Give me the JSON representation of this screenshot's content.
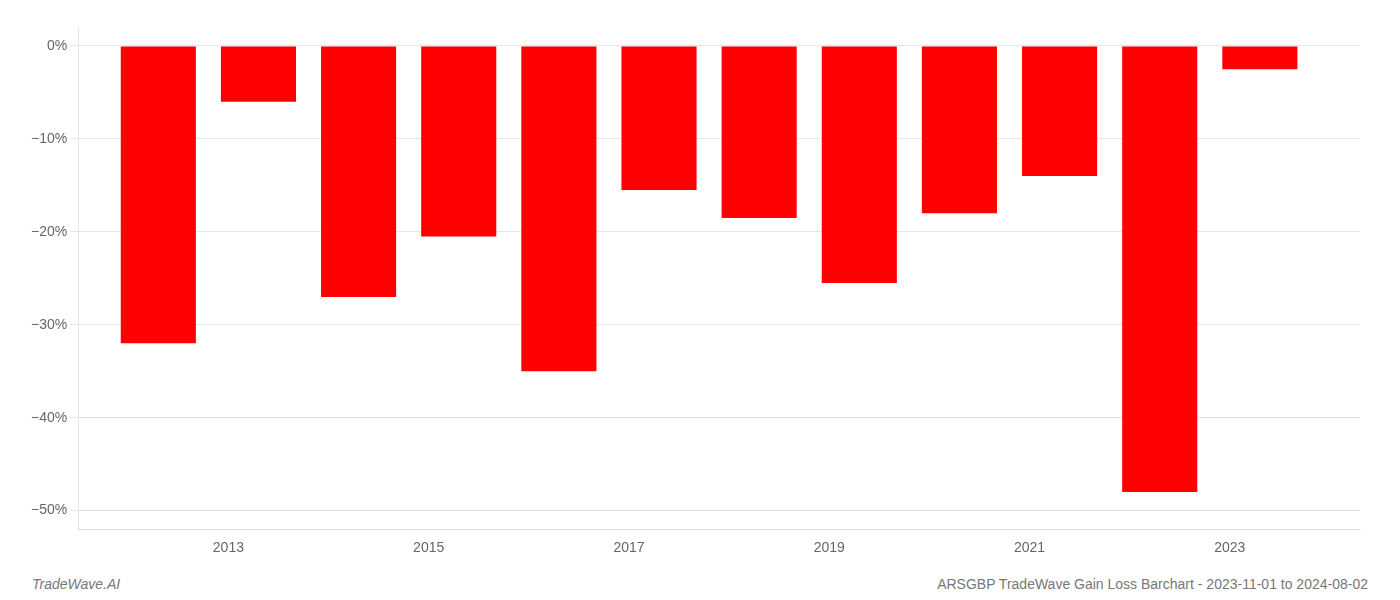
{
  "chart_data": {
    "type": "bar",
    "x": [
      2012.3,
      2013.3,
      2014.3,
      2015.3,
      2016.3,
      2017.3,
      2018.3,
      2019.3,
      2020.3,
      2021.3,
      2022.3,
      2023.3
    ],
    "values": [
      -32.0,
      -6.0,
      -27.0,
      -20.5,
      -35.0,
      -15.5,
      -18.5,
      -25.5,
      -18.0,
      -14.0,
      -48.0,
      -2.5
    ],
    "color": "#ff0000",
    "xlim": [
      2011.5,
      2024.3
    ],
    "xticks": [
      2013,
      2015,
      2017,
      2019,
      2021,
      2023
    ],
    "ylim": [
      -52,
      2
    ],
    "yticks": [
      {
        "value": 0,
        "label": "0%"
      },
      {
        "value": -10,
        "label": "−10%"
      },
      {
        "value": -20,
        "label": "−20%"
      },
      {
        "value": -30,
        "label": "−30%"
      },
      {
        "value": -40,
        "label": "−40%"
      },
      {
        "value": -50,
        "label": "−50%"
      }
    ],
    "grid": "y",
    "annotations": [
      "TradeWave.AI",
      "ARSGBP TradeWave Gain Loss Barchart - 2023-11-01 to 2024-08-02"
    ]
  }
}
